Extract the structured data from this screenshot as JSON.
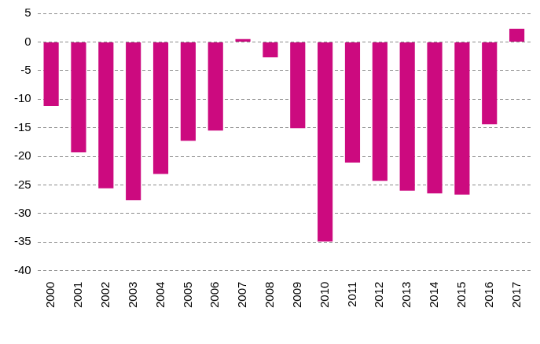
{
  "chart_data": {
    "type": "bar",
    "categories": [
      "2000",
      "2001",
      "2002",
      "2003",
      "2004",
      "2005",
      "2006",
      "2007",
      "2008",
      "2009",
      "2010",
      "2011",
      "2012",
      "2013",
      "2014",
      "2015",
      "2016",
      "2017"
    ],
    "values": [
      -11.2,
      -19.3,
      -25.6,
      -27.7,
      -23.1,
      -17.3,
      -15.5,
      0.5,
      -2.7,
      -15.1,
      -34.9,
      -21.1,
      -24.3,
      -26.0,
      -26.5,
      -26.7,
      -14.4,
      2.3
    ],
    "color": "#cc0a7f",
    "ylim": [
      -40,
      5
    ],
    "yticks": [
      -40,
      -35,
      -30,
      -25,
      -20,
      -15,
      -10,
      -5,
      0,
      5
    ],
    "grid": true
  }
}
